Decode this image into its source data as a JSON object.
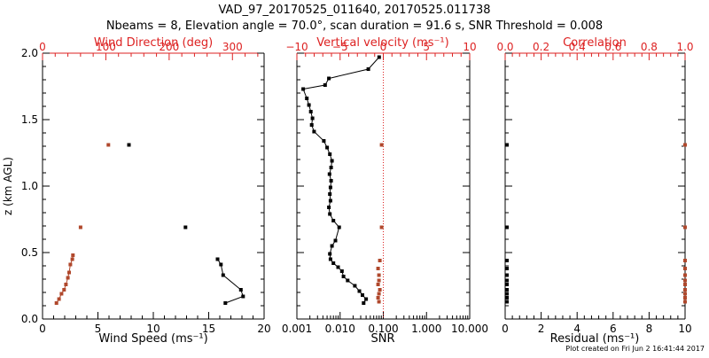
{
  "title_line1": "VAD_97_20170525_011640, 20170525.011738",
  "title_line2": "Nbeams = 8, Elevation angle = 70.0°, scan duration = 91.6 s, SNR Threshold = 0.008",
  "footer": "Plot created on Fri Jun  2 16:41:44 2017",
  "colors": {
    "axis": "#000000",
    "secondary": "#dd2222",
    "marker_red": "#b0482c",
    "series": "#000000"
  },
  "chart_data": [
    {
      "type": "line",
      "name": "panel-wind",
      "ylabel": "z (km AGL)",
      "ylim": [
        0.0,
        2.0
      ],
      "yticks": [
        "0.0",
        "0.5",
        "1.0",
        "1.5",
        "2.0"
      ],
      "xlabel": "Wind Speed (ms⁻¹)",
      "xlim": [
        0,
        20
      ],
      "xticks": [
        "0",
        "5",
        "10",
        "15",
        "20"
      ],
      "top_label": "Wind Direction (deg)",
      "top_lim": [
        0,
        350
      ],
      "top_ticks": [
        "0",
        "100",
        "200",
        "300"
      ],
      "series": [
        {
          "name": "Wind Speed",
          "axis": "bottom",
          "style": "line-markers",
          "x": [
            16.5,
            18.1,
            17.9,
            16.3,
            16.1,
            15.8
          ],
          "y": [
            0.12,
            0.17,
            0.22,
            0.33,
            0.41,
            0.45
          ]
        },
        {
          "name": "Wind Speed (isolated)",
          "axis": "bottom",
          "style": "markers",
          "x": [
            12.9,
            7.8
          ],
          "y": [
            0.69,
            1.31
          ]
        },
        {
          "name": "Wind Direction",
          "axis": "top",
          "style": "line-markers-red",
          "x": [
            22,
            26,
            30,
            34,
            37,
            40,
            42,
            44,
            47,
            48
          ],
          "y": [
            0.12,
            0.15,
            0.19,
            0.22,
            0.26,
            0.31,
            0.35,
            0.41,
            0.45,
            0.48
          ]
        },
        {
          "name": "Wind Direction (isolated)",
          "axis": "top",
          "style": "markers-red",
          "x": [
            60,
            104
          ],
          "y": [
            0.69,
            1.31
          ]
        }
      ]
    },
    {
      "type": "line",
      "name": "panel-snr",
      "ylim": [
        0.0,
        2.0
      ],
      "xlabel": "SNR",
      "xscale": "log",
      "xlim": [
        0.001,
        10.0
      ],
      "xticks": [
        "0.001",
        "0.010",
        "0.100",
        "1.000",
        "10.000"
      ],
      "top_label": "Vertical velocity (ms⁻¹)",
      "top_lim": [
        -10,
        10
      ],
      "top_ticks": [
        "−10",
        "−5",
        "0",
        "5",
        "10"
      ],
      "zero_line": 0,
      "series": [
        {
          "name": "SNR",
          "axis": "bottom",
          "style": "line-markers",
          "x": [
            0.035,
            0.04,
            0.033,
            0.028,
            0.022,
            0.015,
            0.012,
            0.011,
            0.009,
            0.007,
            0.006,
            0.0058,
            0.0065,
            0.0078,
            0.0095,
            0.007,
            0.0058,
            0.0055,
            0.006,
            0.0058,
            0.006,
            0.0062,
            0.0057,
            0.0062,
            0.0065,
            0.0058,
            0.005,
            0.0042,
            0.0025,
            0.0022,
            0.0023,
            0.0021,
            0.0019,
            0.0017,
            0.0014,
            0.0045,
            0.0055,
            0.045,
            0.08
          ],
          "y": [
            0.12,
            0.15,
            0.18,
            0.21,
            0.25,
            0.29,
            0.32,
            0.36,
            0.39,
            0.42,
            0.45,
            0.49,
            0.55,
            0.59,
            0.69,
            0.74,
            0.79,
            0.84,
            0.89,
            0.94,
            0.99,
            1.04,
            1.09,
            1.14,
            1.19,
            1.24,
            1.29,
            1.34,
            1.41,
            1.46,
            1.51,
            1.56,
            1.61,
            1.66,
            1.73,
            1.76,
            1.81,
            1.88,
            1.97
          ]
        },
        {
          "name": "Vertical velocity",
          "axis": "top",
          "style": "markers-red",
          "x": [
            -0.5,
            -0.6,
            -0.5,
            -0.4,
            -0.6,
            -0.5,
            -0.5,
            -0.6,
            -0.4,
            -0.2,
            -0.2
          ],
          "y": [
            0.13,
            0.16,
            0.19,
            0.22,
            0.26,
            0.29,
            0.33,
            0.38,
            0.44,
            0.69,
            1.31
          ]
        }
      ]
    },
    {
      "type": "scatter",
      "name": "panel-residual",
      "ylim": [
        0.0,
        2.0
      ],
      "xlabel": "Residual (ms⁻¹)",
      "xlim": [
        0,
        10
      ],
      "xticks": [
        "0",
        "2",
        "4",
        "6",
        "8",
        "10"
      ],
      "top_label": "Correlation",
      "top_lim": [
        0.0,
        1.0
      ],
      "top_ticks": [
        "0.0",
        "0.2",
        "0.4",
        "0.6",
        "0.8",
        "1.0"
      ],
      "series": [
        {
          "name": "Residual",
          "axis": "bottom",
          "style": "markers",
          "x": [
            0.1,
            0.1,
            0.1,
            0.1,
            0.1,
            0.1,
            0.1,
            0.1,
            0.1,
            0.1,
            0.1
          ],
          "y": [
            0.13,
            0.16,
            0.19,
            0.22,
            0.26,
            0.29,
            0.33,
            0.38,
            0.44,
            0.69,
            1.31
          ]
        },
        {
          "name": "Correlation",
          "axis": "top",
          "style": "markers-red",
          "x": [
            1.0,
            1.0,
            1.0,
            1.0,
            1.0,
            1.0,
            1.0,
            1.0,
            1.0,
            1.0,
            1.0
          ],
          "y": [
            0.13,
            0.16,
            0.19,
            0.22,
            0.26,
            0.29,
            0.33,
            0.38,
            0.44,
            0.69,
            1.31
          ]
        }
      ]
    }
  ]
}
